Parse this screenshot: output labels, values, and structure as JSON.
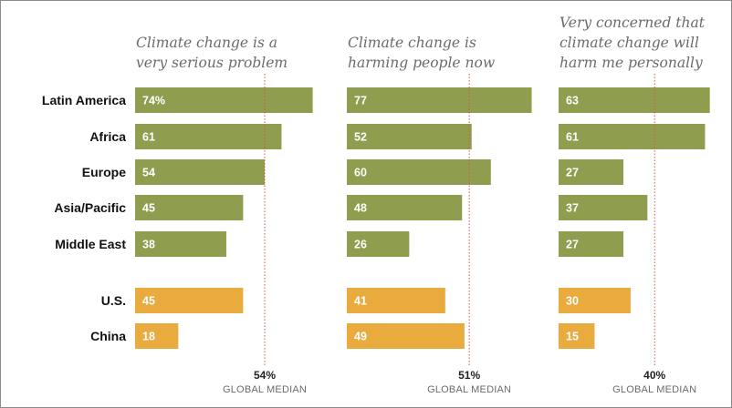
{
  "chart_data": {
    "type": "bar",
    "orientation": "horizontal",
    "categories": [
      "Latin America",
      "Africa",
      "Europe",
      "Asia/Pacific",
      "Middle East",
      "U.S.",
      "China"
    ],
    "category_groups": {
      "regions": [
        0,
        1,
        2,
        3,
        4
      ],
      "countries": [
        5,
        6
      ]
    },
    "colors": {
      "regions": "#8f9d4e",
      "countries": "#e9ab3e",
      "median_line": "#d9534f"
    },
    "median_caption": "GLOBAL MEDIAN",
    "panels": [
      {
        "title_lines": [
          "Climate change is a",
          "very serious problem"
        ],
        "values": [
          74,
          61,
          54,
          45,
          38,
          45,
          18
        ],
        "value_labels": [
          "74%",
          "61",
          "54",
          "45",
          "38",
          "45",
          "18"
        ],
        "median": 54,
        "median_label": "54%"
      },
      {
        "title_lines": [
          "Climate change is",
          "harming people now"
        ],
        "values": [
          77,
          52,
          60,
          48,
          26,
          41,
          49
        ],
        "value_labels": [
          "77",
          "52",
          "60",
          "48",
          "26",
          "41",
          "49"
        ],
        "median": 51,
        "median_label": "51%"
      },
      {
        "title_lines": [
          "Very concerned that",
          "climate change will",
          "harm me personally"
        ],
        "values": [
          63,
          61,
          27,
          37,
          27,
          30,
          15
        ],
        "value_labels": [
          "63",
          "61",
          "27",
          "37",
          "27",
          "30",
          "15"
        ],
        "median": 40,
        "median_label": "40%"
      }
    ]
  }
}
